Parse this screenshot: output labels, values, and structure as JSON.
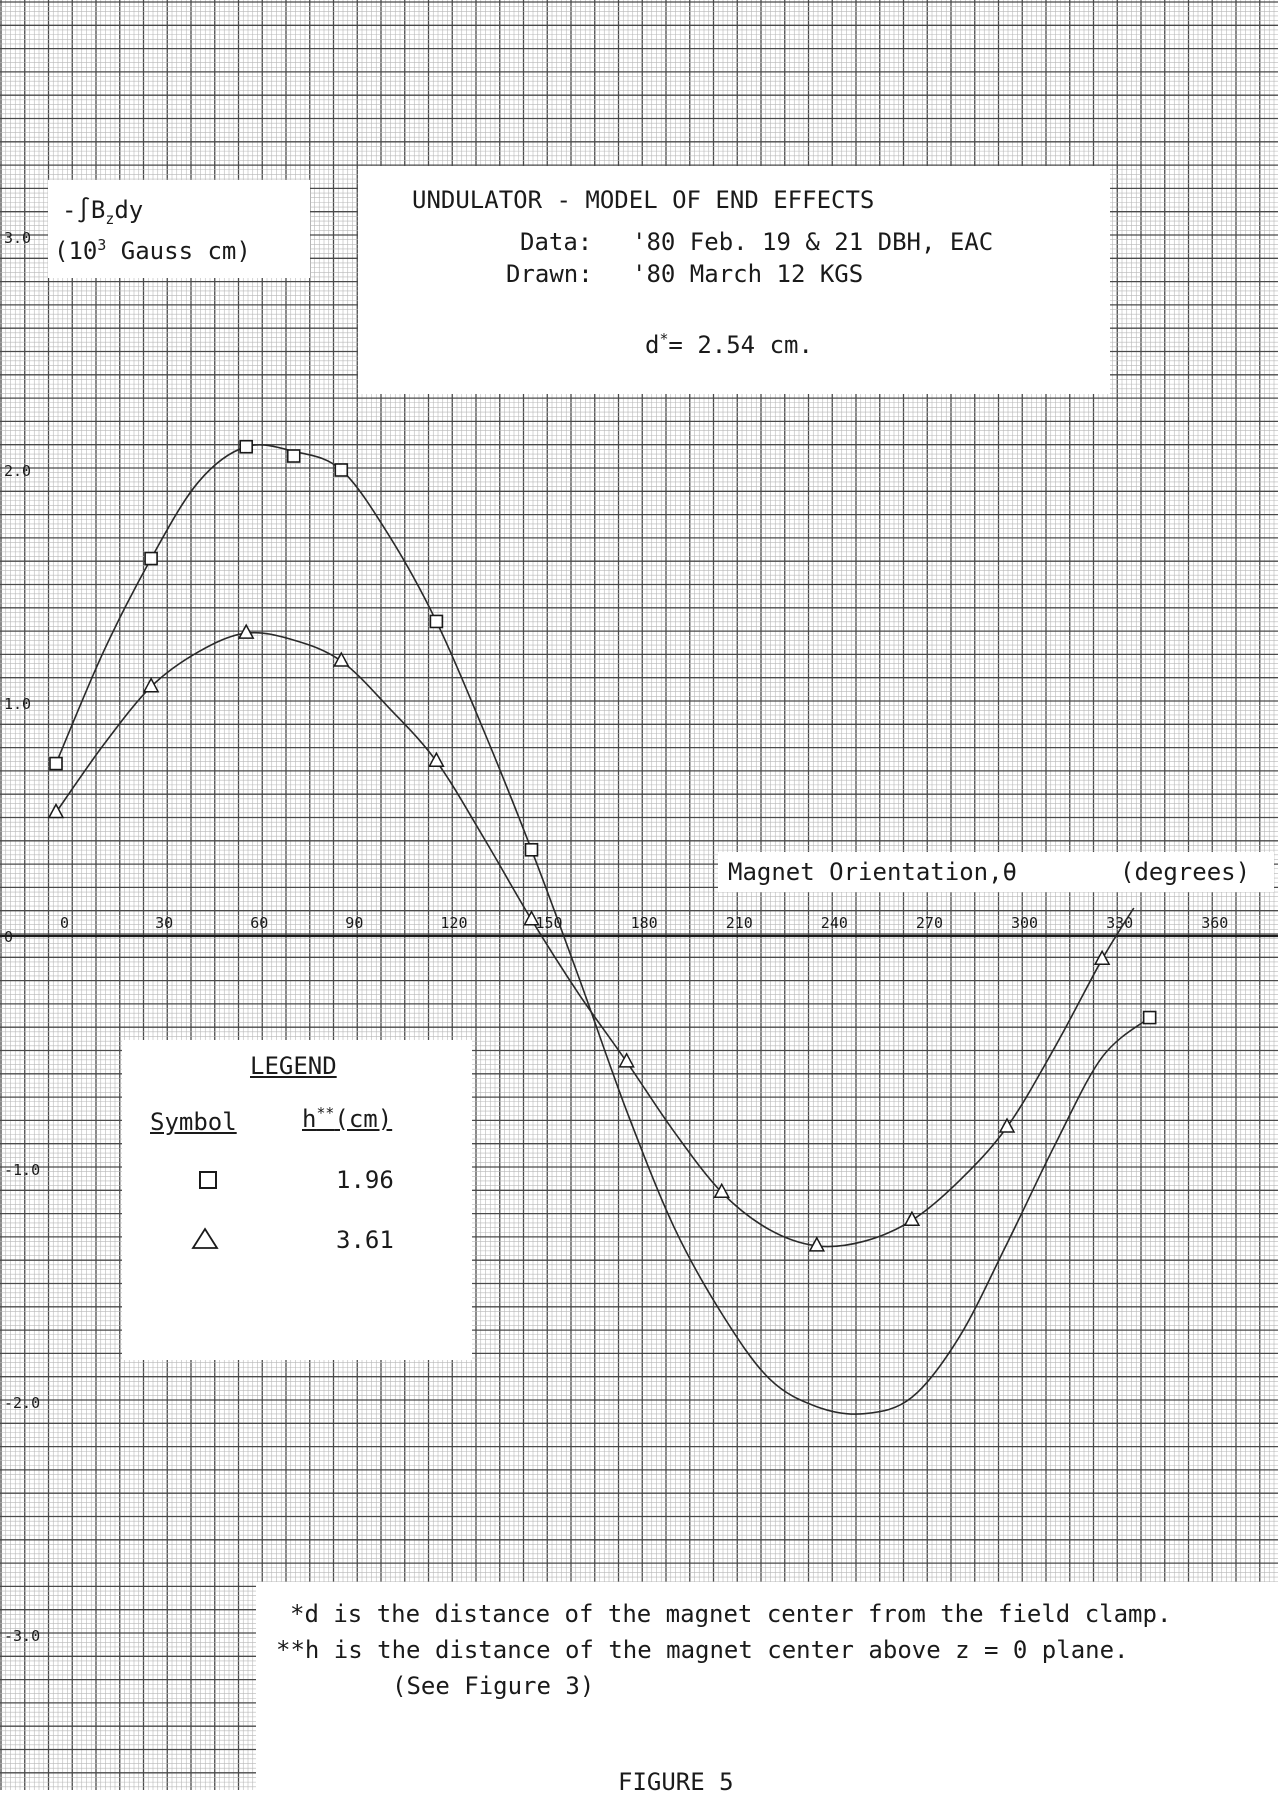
{
  "chart_data": {
    "type": "line",
    "title": "UNDULATOR - MODEL OF END EFFECTS",
    "data_line": {
      "label": "Data:",
      "value": "'80 Feb. 19 & 21  DBH, EAC"
    },
    "drawn_line": {
      "label": "Drawn:",
      "value": "'80 March 12   KGS"
    },
    "d_note": {
      "prefix": "d",
      "sup": "*",
      "value": "= 2.54 cm."
    },
    "ylabel": {
      "line1_prefix": "-∫B",
      "line1_sub": "z",
      "line1_suffix": "dy",
      "line2_open": "(10",
      "line2_sup": "3",
      "line2_rest": " Gauss cm)"
    },
    "xlabel": {
      "main": "Magnet Orientation,θ",
      "unit": "(degrees)"
    },
    "xlim": [
      0,
      360
    ],
    "ylim": [
      -3.0,
      3.0
    ],
    "x_ticks": [
      "0",
      "30",
      "60",
      "90",
      "120",
      "150",
      "180",
      "210",
      "240",
      "270",
      "300",
      "330",
      "360"
    ],
    "y_ticks": [
      "3.0",
      "2.0",
      "1.0",
      "0",
      "-1.0",
      "-2.0",
      "-3.0"
    ],
    "grid": true,
    "series": [
      {
        "symbol": "square",
        "h_cm": "1.96",
        "points": [
          [
            0,
            0.74
          ],
          [
            30,
            1.62
          ],
          [
            60,
            2.1
          ],
          [
            75,
            2.06
          ],
          [
            90,
            2.0
          ],
          [
            120,
            1.35
          ],
          [
            150,
            0.37
          ],
          [
            345,
            -0.35
          ]
        ],
        "curve": [
          [
            0,
            0.74
          ],
          [
            15,
            1.22
          ],
          [
            30,
            1.62
          ],
          [
            45,
            1.95
          ],
          [
            60,
            2.1
          ],
          [
            75,
            2.08
          ],
          [
            90,
            2.0
          ],
          [
            105,
            1.72
          ],
          [
            120,
            1.35
          ],
          [
            135,
            0.88
          ],
          [
            150,
            0.37
          ],
          [
            165,
            -0.18
          ],
          [
            180,
            -0.75
          ],
          [
            195,
            -1.25
          ],
          [
            210,
            -1.62
          ],
          [
            225,
            -1.9
          ],
          [
            240,
            -2.02
          ],
          [
            255,
            -2.05
          ],
          [
            270,
            -1.98
          ],
          [
            285,
            -1.72
          ],
          [
            300,
            -1.32
          ],
          [
            315,
            -0.9
          ],
          [
            330,
            -0.52
          ],
          [
            345,
            -0.35
          ]
        ]
      },
      {
        "symbol": "triangle",
        "h_cm": "3.61",
        "points": [
          [
            0,
            0.53
          ],
          [
            30,
            1.07
          ],
          [
            60,
            1.3
          ],
          [
            90,
            1.18
          ],
          [
            120,
            0.75
          ],
          [
            150,
            0.07
          ],
          [
            180,
            -0.54
          ],
          [
            210,
            -1.1
          ],
          [
            240,
            -1.33
          ],
          [
            270,
            -1.22
          ],
          [
            300,
            -0.82
          ],
          [
            330,
            -0.1
          ]
        ],
        "curve": [
          [
            0,
            0.53
          ],
          [
            15,
            0.82
          ],
          [
            30,
            1.07
          ],
          [
            45,
            1.22
          ],
          [
            60,
            1.3
          ],
          [
            75,
            1.27
          ],
          [
            90,
            1.18
          ],
          [
            105,
            0.98
          ],
          [
            120,
            0.75
          ],
          [
            135,
            0.42
          ],
          [
            150,
            0.07
          ],
          [
            165,
            -0.25
          ],
          [
            180,
            -0.54
          ],
          [
            195,
            -0.84
          ],
          [
            210,
            -1.1
          ],
          [
            225,
            -1.26
          ],
          [
            240,
            -1.33
          ],
          [
            255,
            -1.31
          ],
          [
            270,
            -1.22
          ],
          [
            285,
            -1.05
          ],
          [
            300,
            -0.82
          ],
          [
            315,
            -0.48
          ],
          [
            330,
            -0.1
          ],
          [
            340,
            0.12
          ]
        ]
      }
    ]
  },
  "legend": {
    "title": "LEGEND",
    "col1": "Symbol",
    "col2_base": "h",
    "col2_sup": "**",
    "col2_unit": "(cm)",
    "rows": [
      {
        "symbol": "square",
        "h": "1.96"
      },
      {
        "symbol": "triangle",
        "h": "3.61"
      }
    ]
  },
  "footnotes": {
    "line1": "*d is the distance of the magnet center from the field clamp.",
    "line2": "**h is the distance of the magnet center above z = 0 plane.",
    "line3": "(See Figure 3)"
  },
  "figure_label": "FIGURE 5"
}
